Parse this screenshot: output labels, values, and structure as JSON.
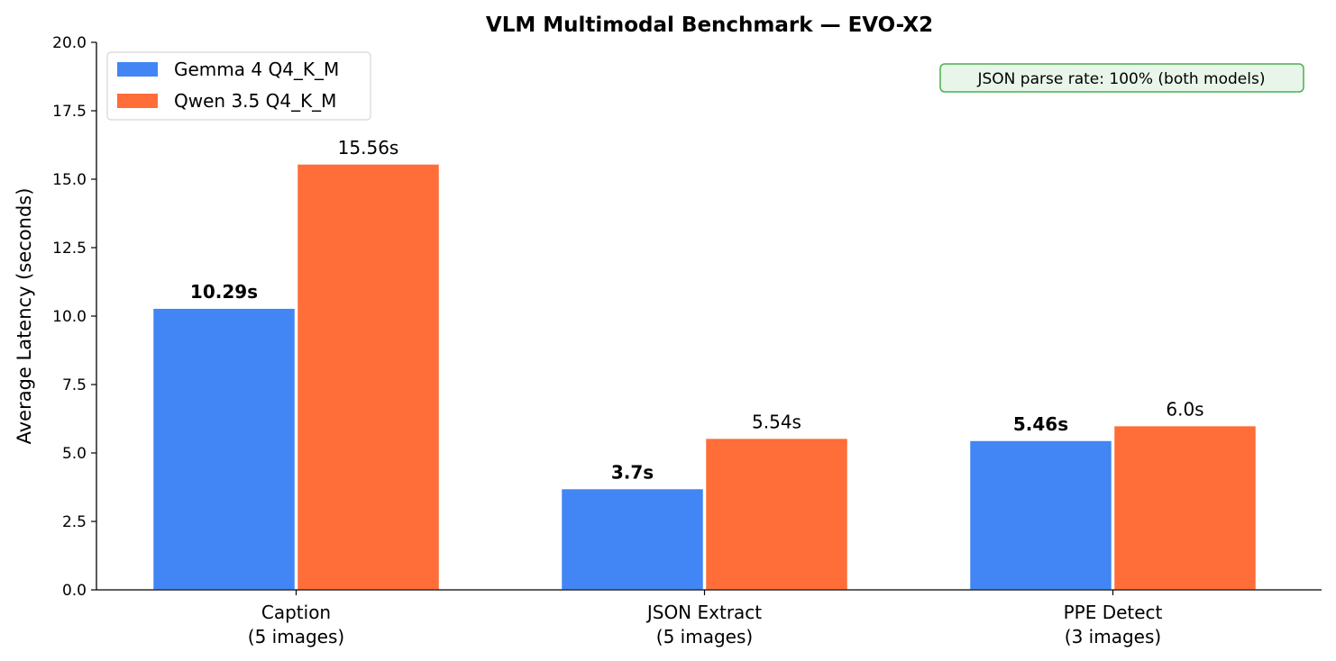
{
  "chart_data": {
    "type": "bar",
    "title": "VLM Multimodal Benchmark — EVO-X2",
    "xlabel": "",
    "ylabel": "Average Latency (seconds)",
    "ylim": [
      0,
      20
    ],
    "yticks": [
      "0.0",
      "2.5",
      "5.0",
      "7.5",
      "10.0",
      "12.5",
      "15.0",
      "17.5",
      "20.0"
    ],
    "categories": [
      {
        "line1": "Caption",
        "line2": "(5 images)"
      },
      {
        "line1": "JSON Extract",
        "line2": "(5 images)"
      },
      {
        "line1": "PPE Detect",
        "line2": "(3 images)"
      }
    ],
    "series": [
      {
        "name": "Gemma 4 Q4_K_M",
        "color": "#4285F4",
        "values": [
          10.29,
          3.7,
          5.46
        ],
        "labels": [
          "10.29s",
          "3.7s",
          "5.46s"
        ],
        "label_bold": true
      },
      {
        "name": "Qwen 3.5 Q4_K_M",
        "color": "#FF6D38",
        "values": [
          15.56,
          5.54,
          6.0
        ],
        "labels": [
          "15.56s",
          "5.54s",
          "6.0s"
        ],
        "label_bold": false
      }
    ],
    "legend_position": "top-left",
    "grid": false,
    "annotation": {
      "text": "JSON parse rate: 100% (both models)",
      "position": "top-right",
      "border_color": "#4CAF50",
      "fill_color": "#E8F5E9"
    }
  }
}
